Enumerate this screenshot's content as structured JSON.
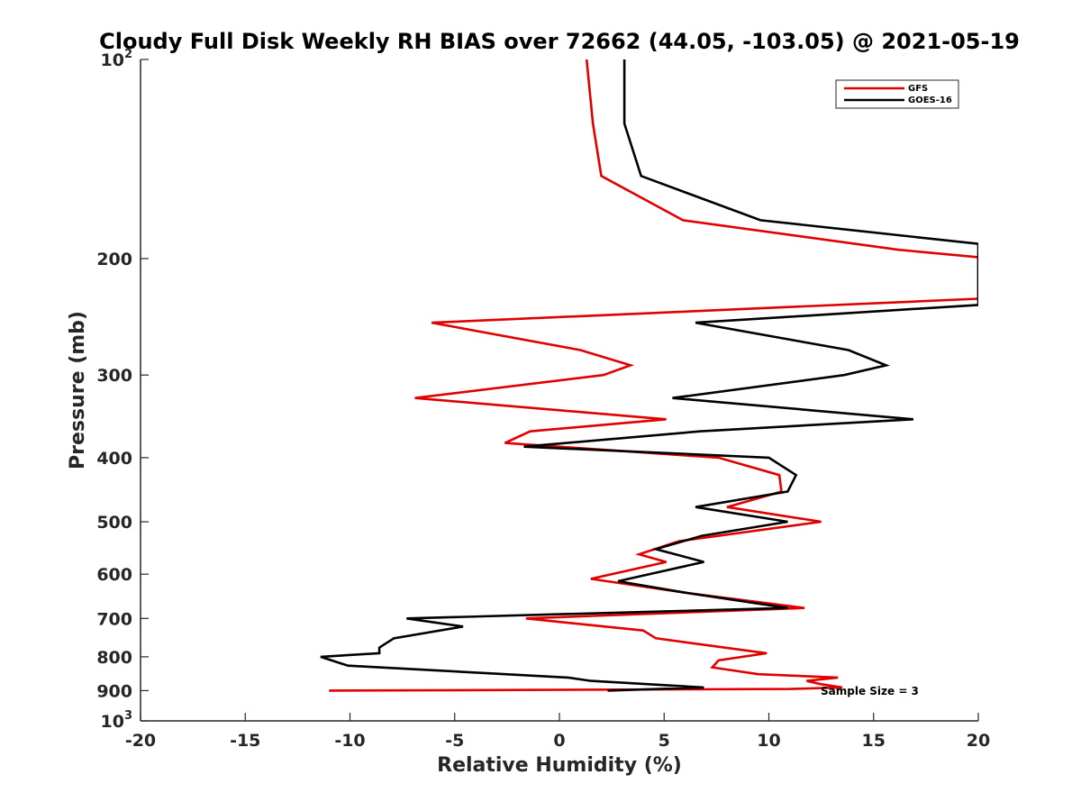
{
  "chart_data": {
    "type": "line",
    "title": "Cloudy Full Disk Weekly RH BIAS over 72662 (44.05, -103.05) @ 2021-05-19",
    "xlabel": "Relative Humidity (%)",
    "ylabel": "Pressure (mb)",
    "xlim": [
      -20,
      20
    ],
    "ylim": [
      100,
      1000
    ],
    "y_scale": "log",
    "y_reversed": true,
    "grid": false,
    "x_ticks": [
      -20,
      -15,
      -10,
      -5,
      0,
      5,
      10,
      15,
      20
    ],
    "y_ticks": [
      {
        "value": 100,
        "base": "10",
        "exp": "2"
      },
      {
        "value": 200,
        "label": "200"
      },
      {
        "value": 300,
        "label": "300"
      },
      {
        "value": 400,
        "label": "400"
      },
      {
        "value": 500,
        "label": "500"
      },
      {
        "value": 600,
        "label": "600"
      },
      {
        "value": 700,
        "label": "700"
      },
      {
        "value": 800,
        "label": "800"
      },
      {
        "value": 900,
        "label": "900"
      },
      {
        "value": 1000,
        "base": "10",
        "exp": "3"
      }
    ],
    "legend_position": "top-right",
    "annotation": "Sample Size = 3",
    "series": [
      {
        "name": "GFS",
        "color": "#e00000",
        "points": [
          [
            1.3,
            100
          ],
          [
            1.6,
            125
          ],
          [
            2.0,
            150
          ],
          [
            5.9,
            175
          ],
          [
            16.2,
            194
          ],
          [
            20.0,
            199
          ],
          [
            20.0,
            230
          ],
          [
            -6.1,
            250
          ],
          [
            1.0,
            275
          ],
          [
            3.4,
            290
          ],
          [
            2.1,
            300
          ],
          [
            -6.9,
            325
          ],
          [
            5.1,
            350
          ],
          [
            -1.4,
            365
          ],
          [
            -2.6,
            380
          ],
          [
            7.6,
            400
          ],
          [
            10.5,
            425
          ],
          [
            10.6,
            450
          ],
          [
            8.0,
            475
          ],
          [
            12.5,
            500
          ],
          [
            5.7,
            535
          ],
          [
            3.8,
            560
          ],
          [
            5.1,
            575
          ],
          [
            1.5,
            610
          ],
          [
            6.0,
            640
          ],
          [
            11.7,
            675
          ],
          [
            -1.6,
            700
          ],
          [
            4.0,
            730
          ],
          [
            4.6,
            750
          ],
          [
            9.9,
            790
          ],
          [
            7.6,
            810
          ],
          [
            7.3,
            830
          ],
          [
            9.5,
            850
          ],
          [
            13.3,
            860
          ],
          [
            11.8,
            870
          ],
          [
            12.5,
            880
          ],
          [
            13.5,
            890
          ],
          [
            11.0,
            895
          ],
          [
            -11.0,
            900
          ]
        ]
      },
      {
        "name": "GOES-16",
        "color": "#000000",
        "points": [
          [
            3.1,
            100
          ],
          [
            3.1,
            125
          ],
          [
            3.9,
            150
          ],
          [
            9.6,
            175
          ],
          [
            20.0,
            190
          ],
          [
            20.0,
            235
          ],
          [
            6.5,
            250
          ],
          [
            13.8,
            275
          ],
          [
            15.6,
            290
          ],
          [
            13.6,
            300
          ],
          [
            5.4,
            325
          ],
          [
            16.9,
            350
          ],
          [
            6.7,
            365
          ],
          [
            -1.7,
            385
          ],
          [
            10.0,
            400
          ],
          [
            11.3,
            425
          ],
          [
            10.9,
            450
          ],
          [
            6.5,
            475
          ],
          [
            10.9,
            500
          ],
          [
            6.8,
            525
          ],
          [
            4.6,
            550
          ],
          [
            6.9,
            575
          ],
          [
            2.8,
            615
          ],
          [
            6.0,
            640
          ],
          [
            10.9,
            675
          ],
          [
            -7.3,
            700
          ],
          [
            -4.6,
            720
          ],
          [
            -7.9,
            750
          ],
          [
            -8.6,
            775
          ],
          [
            -8.6,
            790
          ],
          [
            -11.4,
            800
          ],
          [
            -10.1,
            825
          ],
          [
            0.4,
            860
          ],
          [
            1.5,
            870
          ],
          [
            6.9,
            890
          ],
          [
            2.3,
            900
          ]
        ]
      }
    ]
  }
}
